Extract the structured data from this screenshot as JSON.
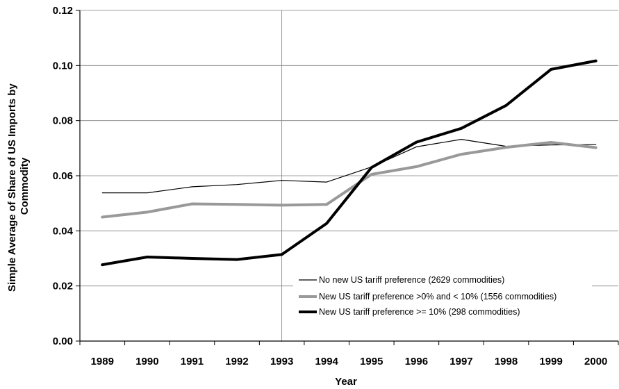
{
  "chart_data": {
    "type": "line",
    "title": "",
    "xlabel": "Year",
    "ylabel_lines": [
      "Simple Average of Share of US Imports by",
      "Commodity"
    ],
    "x": [
      "1989",
      "1990",
      "1991",
      "1992",
      "1993",
      "1994",
      "1995",
      "1996",
      "1997",
      "1998",
      "1999",
      "2000"
    ],
    "ylim": [
      0,
      0.12
    ],
    "yticks": [
      "0.00",
      "0.02",
      "0.04",
      "0.06",
      "0.08",
      "0.10",
      "0.12"
    ],
    "grid": "horizontal",
    "vertical_reference_line_x": "1993",
    "legend_position": "bottom-right",
    "series": [
      {
        "name": "No new US tariff preference (2629 commodities)",
        "color": "#000000",
        "style": "thin",
        "values": [
          0.0538,
          0.0538,
          0.056,
          0.0568,
          0.0583,
          0.0577,
          0.0632,
          0.0705,
          0.0732,
          0.0707,
          0.0712,
          0.0713
        ]
      },
      {
        "name": "New US tariff preference >0% and < 10% (1556 commodities)",
        "color": "#999999",
        "style": "medium",
        "values": [
          0.045,
          0.0468,
          0.0498,
          0.0496,
          0.0493,
          0.0496,
          0.0605,
          0.0633,
          0.0678,
          0.0703,
          0.0721,
          0.0702
        ]
      },
      {
        "name": "New US tariff preference >= 10% (298 commodities)",
        "color": "#000000",
        "style": "thick",
        "values": [
          0.0277,
          0.0305,
          0.03,
          0.0296,
          0.0314,
          0.0427,
          0.063,
          0.0722,
          0.0772,
          0.0855,
          0.0986,
          0.1017
        ]
      }
    ]
  }
}
